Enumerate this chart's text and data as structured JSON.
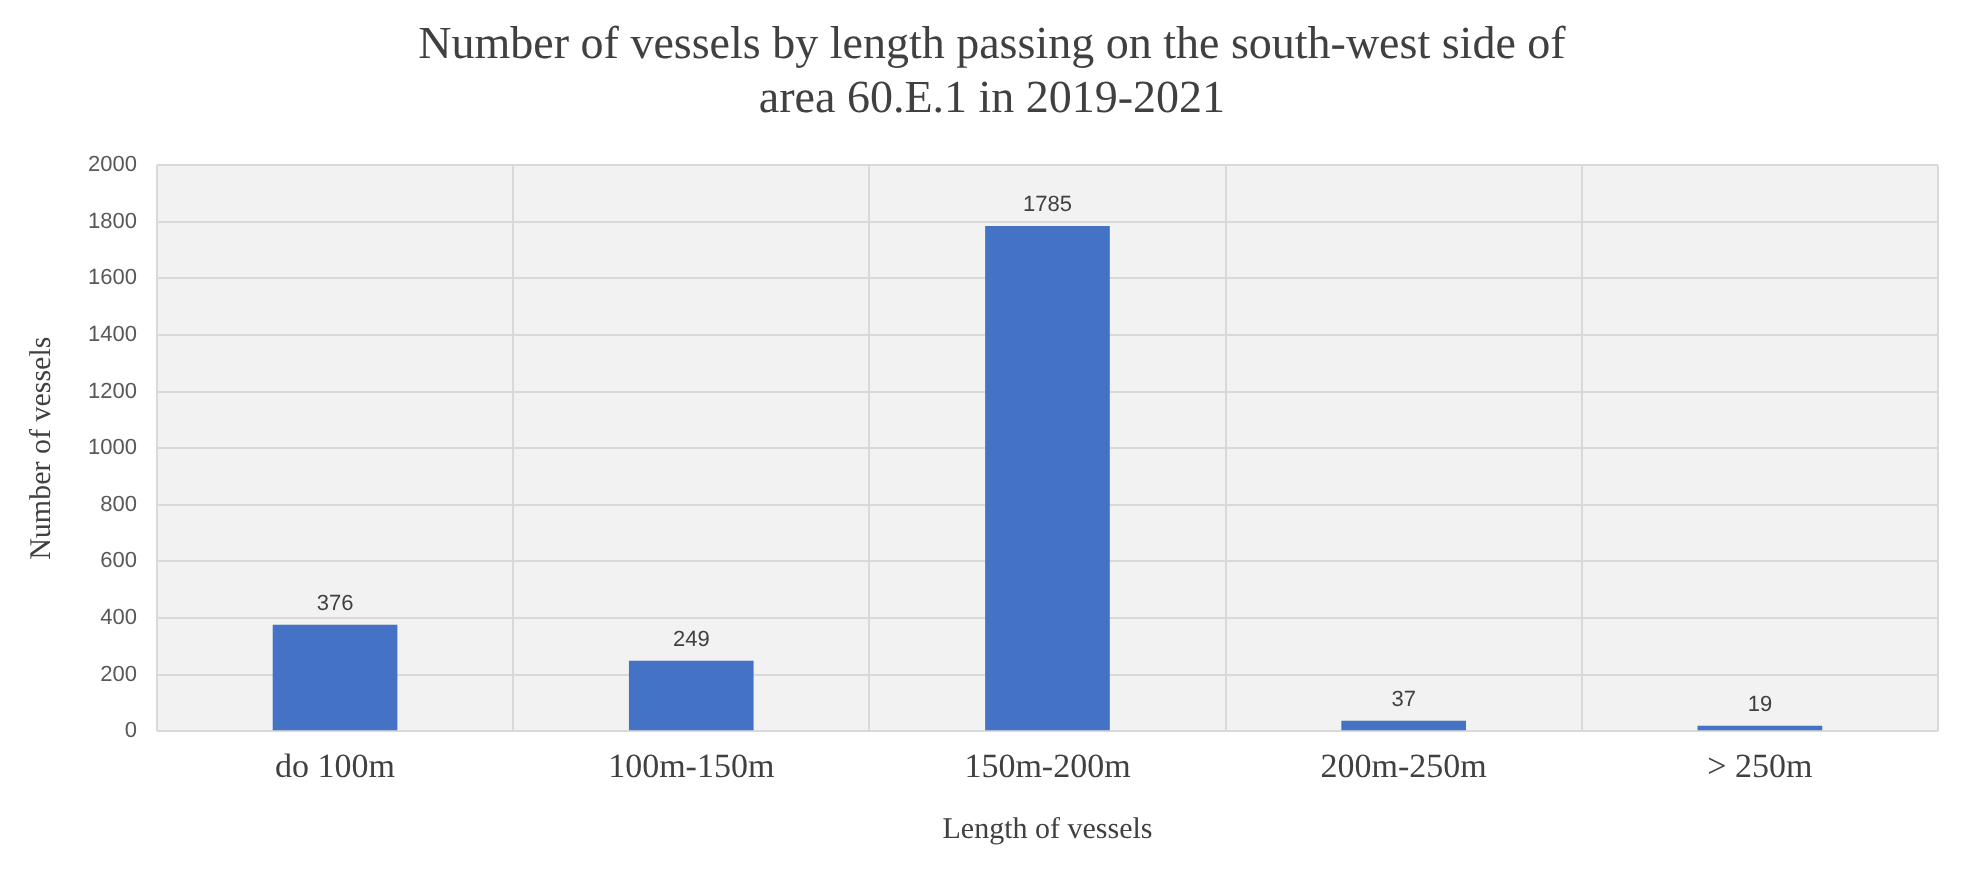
{
  "chart_data": {
    "type": "bar",
    "title": "Number of vessels by length passing on the south-west side of area 60.E.1 in 2019-2021",
    "xlabel": "Length of vessels",
    "ylabel": "Number of vessels",
    "categories": [
      "do 100m",
      "100m-150m",
      "150m-200m",
      "200m-250m",
      "> 250m"
    ],
    "values": [
      376,
      249,
      1785,
      37,
      19
    ],
    "color": "#4472c4",
    "ylim": [
      0,
      2000
    ],
    "yticks": [
      0,
      200,
      400,
      600,
      800,
      1000,
      1200,
      1400,
      1600,
      1800,
      2000
    ],
    "grid": true,
    "data_labels": true
  }
}
